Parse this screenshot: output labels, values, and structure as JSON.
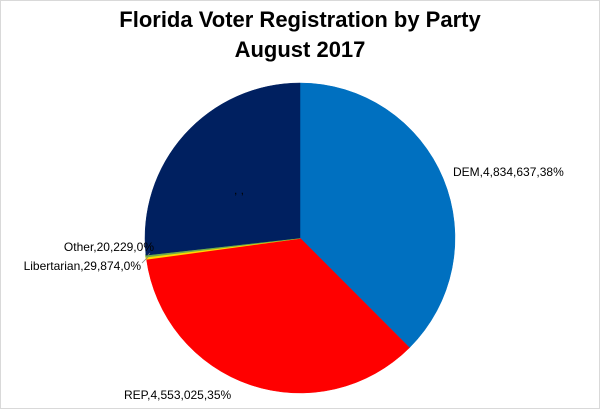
{
  "chart_data": {
    "type": "pie",
    "title": "Florida Voter Registration by Party",
    "subtitle": "August 2017",
    "slices": [
      {
        "name": "DEM",
        "value": 4834637,
        "pct": "38%",
        "label": "DEM,4,834,637,38%",
        "color": "#0070C0"
      },
      {
        "name": "REP",
        "value": 4553025,
        "pct": "35%",
        "label": "REP,4,553,025,35%",
        "color": "#FF0000"
      },
      {
        "name": "Libertarian",
        "value": 29874,
        "pct": "0%",
        "label": "Libertarian,29,874,0%",
        "color": "#FFD700"
      },
      {
        "name": "Other",
        "value": 20229,
        "pct": "0%",
        "label": "Other,20,229,0%",
        "color": "#70AD47"
      },
      {
        "name": "",
        "value": 3450000,
        "pct": "",
        "label": ", ,",
        "color": "#002060"
      }
    ]
  }
}
